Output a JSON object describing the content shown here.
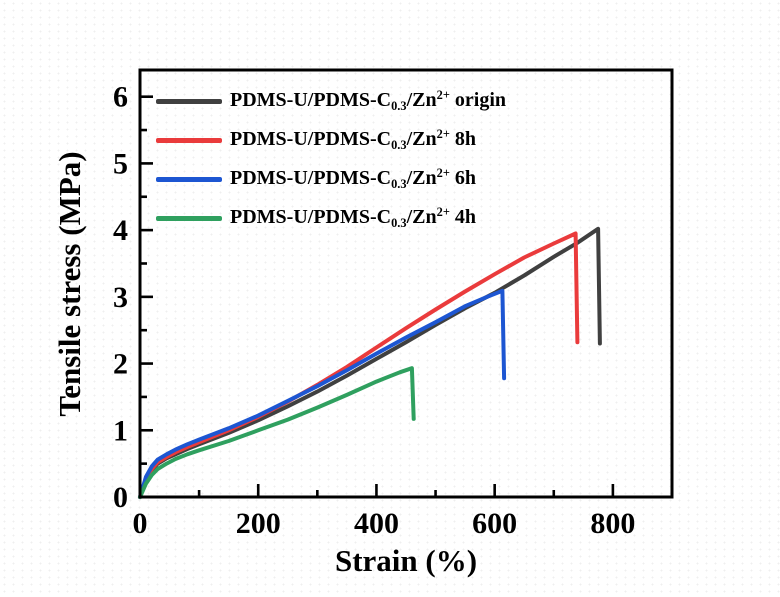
{
  "figure": {
    "background_color": "#ffffff",
    "axis_color": "#000000"
  },
  "axis_titles": {
    "x": "Strain (%)",
    "y": "Tensile stress (MPa)"
  },
  "chart_data": {
    "type": "line",
    "title": "",
    "xlabel": "Strain (%)",
    "ylabel": "Tensile stress (MPa)",
    "xlim": [
      0,
      900
    ],
    "ylim": [
      0,
      6.4
    ],
    "grid": false,
    "legend_position": "upper-left-inside",
    "x_major_ticks": [
      0,
      200,
      400,
      600,
      800
    ],
    "x_minor_step": 100,
    "y_major_ticks": [
      0,
      1,
      2,
      3,
      4,
      5,
      6
    ],
    "y_minor_step": 0.5,
    "series": [
      {
        "name": "PDMS-U/PDMS-C0.3/Zn2+ origin",
        "color": "#404040",
        "break_point": {
          "strain": 775,
          "stress": 4.02,
          "post_break_stress": 2.3
        },
        "points": [
          [
            0,
            0
          ],
          [
            5,
            0.12
          ],
          [
            10,
            0.24
          ],
          [
            20,
            0.4
          ],
          [
            30,
            0.5
          ],
          [
            45,
            0.58
          ],
          [
            60,
            0.64
          ],
          [
            80,
            0.72
          ],
          [
            100,
            0.79
          ],
          [
            150,
            0.96
          ],
          [
            200,
            1.15
          ],
          [
            250,
            1.36
          ],
          [
            300,
            1.58
          ],
          [
            350,
            1.82
          ],
          [
            400,
            2.07
          ],
          [
            450,
            2.32
          ],
          [
            500,
            2.58
          ],
          [
            550,
            2.83
          ],
          [
            600,
            3.06
          ],
          [
            650,
            3.32
          ],
          [
            700,
            3.6
          ],
          [
            740,
            3.81
          ],
          [
            775,
            4.02
          ],
          [
            778,
            2.3
          ]
        ]
      },
      {
        "name": "PDMS-U/PDMS-C0.3/Zn2+ 8h",
        "color": "#ea3b3c",
        "break_point": {
          "strain": 737,
          "stress": 3.95,
          "post_break_stress": 2.32
        },
        "points": [
          [
            0,
            0
          ],
          [
            5,
            0.13
          ],
          [
            10,
            0.26
          ],
          [
            20,
            0.42
          ],
          [
            30,
            0.52
          ],
          [
            45,
            0.6
          ],
          [
            60,
            0.67
          ],
          [
            80,
            0.75
          ],
          [
            100,
            0.82
          ],
          [
            150,
            1.0
          ],
          [
            200,
            1.2
          ],
          [
            250,
            1.43
          ],
          [
            300,
            1.68
          ],
          [
            350,
            1.95
          ],
          [
            400,
            2.24
          ],
          [
            450,
            2.53
          ],
          [
            500,
            2.81
          ],
          [
            550,
            3.08
          ],
          [
            600,
            3.34
          ],
          [
            650,
            3.59
          ],
          [
            700,
            3.8
          ],
          [
            737,
            3.95
          ],
          [
            740,
            2.32
          ]
        ]
      },
      {
        "name": "PDMS-U/PDMS-C0.3/Zn2+ 6h",
        "color": "#1d56d2",
        "break_point": {
          "strain": 613,
          "stress": 3.09,
          "post_break_stress": 1.78
        },
        "points": [
          [
            0,
            0
          ],
          [
            5,
            0.15
          ],
          [
            10,
            0.3
          ],
          [
            20,
            0.46
          ],
          [
            30,
            0.56
          ],
          [
            45,
            0.64
          ],
          [
            60,
            0.71
          ],
          [
            80,
            0.79
          ],
          [
            100,
            0.86
          ],
          [
            150,
            1.03
          ],
          [
            200,
            1.22
          ],
          [
            250,
            1.44
          ],
          [
            300,
            1.66
          ],
          [
            350,
            1.9
          ],
          [
            400,
            2.15
          ],
          [
            450,
            2.39
          ],
          [
            500,
            2.62
          ],
          [
            550,
            2.86
          ],
          [
            590,
            3.01
          ],
          [
            613,
            3.09
          ],
          [
            616,
            1.78
          ]
        ]
      },
      {
        "name": "PDMS-U/PDMS-C0.3/Zn2+ 4h",
        "color": "#2fa05f",
        "break_point": {
          "strain": 460,
          "stress": 1.93,
          "post_break_stress": 1.17
        },
        "points": [
          [
            0,
            0
          ],
          [
            5,
            0.1
          ],
          [
            10,
            0.2
          ],
          [
            20,
            0.33
          ],
          [
            30,
            0.42
          ],
          [
            45,
            0.5
          ],
          [
            60,
            0.57
          ],
          [
            80,
            0.64
          ],
          [
            100,
            0.7
          ],
          [
            150,
            0.84
          ],
          [
            200,
            1.0
          ],
          [
            250,
            1.16
          ],
          [
            300,
            1.34
          ],
          [
            350,
            1.53
          ],
          [
            400,
            1.73
          ],
          [
            440,
            1.87
          ],
          [
            460,
            1.93
          ],
          [
            463,
            1.17
          ]
        ]
      }
    ]
  },
  "legend": {
    "entries": [
      {
        "prefix": "PDMS-U/PDMS-C",
        "subscript": "0.3",
        "middle": "/Zn",
        "superscript": "2+",
        "suffix": " origin",
        "color": "#404040"
      },
      {
        "prefix": "PDMS-U/PDMS-C",
        "subscript": "0.3",
        "middle": "/Zn",
        "superscript": "2+",
        "suffix": " 8h",
        "color": "#ea3b3c"
      },
      {
        "prefix": "PDMS-U/PDMS-C",
        "subscript": "0.3",
        "middle": "/Zn",
        "superscript": "2+",
        "suffix": " 6h",
        "color": "#1d56d2"
      },
      {
        "prefix": "PDMS-U/PDMS-C",
        "subscript": "0.3",
        "middle": "/Zn",
        "superscript": "2+",
        "suffix": " 4h",
        "color": "#2fa05f"
      }
    ]
  }
}
